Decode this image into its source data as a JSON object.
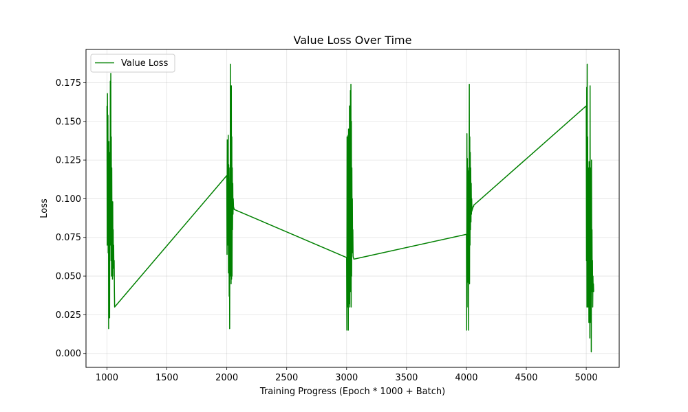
{
  "chart_data": {
    "type": "line",
    "title": "Value Loss Over Time",
    "xlabel": "Training Progress (Epoch * 1000 + Batch)",
    "ylabel": "Loss",
    "xlim": [
      825,
      5275
    ],
    "ylim": [
      -0.009,
      0.1965
    ],
    "xticks": [
      1000,
      1500,
      2000,
      2500,
      3000,
      3500,
      4000,
      4500,
      5000
    ],
    "yticks": [
      0.0,
      0.025,
      0.05,
      0.075,
      0.1,
      0.125,
      0.15,
      0.175
    ],
    "ytick_labels": [
      "0.000",
      "0.025",
      "0.050",
      "0.075",
      "0.100",
      "0.125",
      "0.150",
      "0.175"
    ],
    "grid": true,
    "legend": {
      "position": "top-left",
      "entries": [
        "Value Loss"
      ]
    },
    "colors": {
      "series": "#008000"
    },
    "series": [
      {
        "name": "Value Loss",
        "x": [
          1000,
          1002,
          1004,
          1006,
          1008,
          1010,
          1012,
          1014,
          1016,
          1018,
          1020,
          1022,
          1024,
          1026,
          1028,
          1030,
          1032,
          1034,
          1036,
          1038,
          1040,
          1042,
          1044,
          1046,
          1048,
          1050,
          1052,
          1054,
          1056,
          1058,
          1060,
          1062,
          1064,
          2000,
          2002,
          2004,
          2006,
          2008,
          2010,
          2012,
          2014,
          2016,
          2018,
          2020,
          2022,
          2024,
          2026,
          2028,
          2030,
          2032,
          2034,
          2036,
          2038,
          2040,
          2042,
          2044,
          2046,
          2048,
          2050,
          2052,
          2054,
          2056,
          2058,
          2060,
          2062,
          2064,
          3000,
          3002,
          3004,
          3006,
          3008,
          3010,
          3012,
          3014,
          3016,
          3018,
          3020,
          3022,
          3024,
          3026,
          3028,
          3030,
          3032,
          3034,
          3036,
          3038,
          3040,
          3042,
          3044,
          3046,
          3048,
          3050,
          3052,
          3054,
          3056,
          3058,
          3060,
          3062,
          3064,
          4000,
          4002,
          4004,
          4006,
          4008,
          4010,
          4012,
          4014,
          4016,
          4018,
          4020,
          4022,
          4024,
          4026,
          4028,
          4030,
          4032,
          4034,
          4036,
          4038,
          4040,
          4042,
          4044,
          4046,
          4048,
          4050,
          4052,
          4054,
          4056,
          4058,
          4060,
          4062,
          4064,
          5000,
          5002,
          5004,
          5006,
          5008,
          5010,
          5012,
          5014,
          5016,
          5018,
          5020,
          5022,
          5024,
          5026,
          5028,
          5030,
          5032,
          5034,
          5036,
          5038,
          5040,
          5042,
          5044,
          5046,
          5048,
          5050,
          5052,
          5054,
          5056,
          5058,
          5060,
          5062,
          5064
        ],
        "y": [
          0.16,
          0.07,
          0.168,
          0.1,
          0.154,
          0.065,
          0.132,
          0.016,
          0.137,
          0.07,
          0.12,
          0.023,
          0.13,
          0.07,
          0.176,
          0.09,
          0.181,
          0.06,
          0.14,
          0.05,
          0.12,
          0.07,
          0.09,
          0.048,
          0.098,
          0.06,
          0.08,
          0.055,
          0.07,
          0.05,
          0.06,
          0.04,
          0.03,
          0.115,
          0.064,
          0.138,
          0.08,
          0.125,
          0.07,
          0.141,
          0.052,
          0.122,
          0.1,
          0.037,
          0.09,
          0.016,
          0.12,
          0.05,
          0.187,
          0.06,
          0.17,
          0.045,
          0.173,
          0.048,
          0.14,
          0.05,
          0.12,
          0.08,
          0.11,
          0.09,
          0.1,
          0.095,
          0.094,
          0.094,
          0.093,
          0.093,
          0.062,
          0.015,
          0.14,
          0.03,
          0.135,
          0.04,
          0.141,
          0.015,
          0.145,
          0.05,
          0.13,
          0.032,
          0.16,
          0.03,
          0.14,
          0.06,
          0.17,
          0.04,
          0.174,
          0.03,
          0.15,
          0.05,
          0.12,
          0.07,
          0.1,
          0.065,
          0.08,
          0.063,
          0.062,
          0.062,
          0.061,
          0.061,
          0.061,
          0.077,
          0.015,
          0.142,
          0.03,
          0.126,
          0.05,
          0.12,
          0.046,
          0.118,
          0.015,
          0.11,
          0.06,
          0.174,
          0.045,
          0.14,
          0.07,
          0.13,
          0.08,
          0.12,
          0.085,
          0.11,
          0.09,
          0.1,
          0.092,
          0.093,
          0.093,
          0.094,
          0.094,
          0.095,
          0.095,
          0.095,
          0.096,
          0.096,
          0.16,
          0.06,
          0.172,
          0.03,
          0.187,
          0.04,
          0.14,
          0.03,
          0.12,
          0.05,
          0.11,
          0.02,
          0.124,
          0.06,
          0.1,
          0.01,
          0.173,
          0.04,
          0.12,
          0.02,
          0.11,
          0.001,
          0.125,
          0.05,
          0.08,
          0.04,
          0.06,
          0.03,
          0.05,
          0.04,
          0.045,
          0.04,
          0.04
        ]
      }
    ]
  }
}
